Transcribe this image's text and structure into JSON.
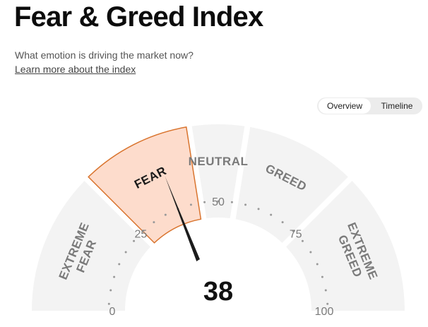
{
  "header": {
    "title": "Fear & Greed Index",
    "subtitle": "What emotion is driving the market now?",
    "learn_more": "Learn more about the index"
  },
  "view_toggle": {
    "options": [
      "Overview",
      "Timeline"
    ],
    "selected": "Overview"
  },
  "gauge": {
    "value": 38,
    "value_text": "38",
    "min": 0,
    "max": 100,
    "active_zone": "FEAR",
    "zones": [
      {
        "label_lines": [
          "EXTREME",
          "FEAR"
        ],
        "from": 0,
        "to": 25
      },
      {
        "label_lines": [
          "FEAR"
        ],
        "from": 25,
        "to": 45
      },
      {
        "label_lines": [
          "NEUTRAL"
        ],
        "from": 45,
        "to": 55
      },
      {
        "label_lines": [
          "GREED"
        ],
        "from": 55,
        "to": 75
      },
      {
        "label_lines": [
          "EXTREME",
          "GREED"
        ],
        "from": 75,
        "to": 100
      }
    ],
    "tick_labels": [
      "0",
      "25",
      "50",
      "75",
      "100"
    ],
    "colors": {
      "zone_fill": "#f3f3f3",
      "active_fill": "#fddccc",
      "active_stroke": "#d9742e",
      "needle": "#1c1c1c",
      "dots": "#999999"
    }
  }
}
